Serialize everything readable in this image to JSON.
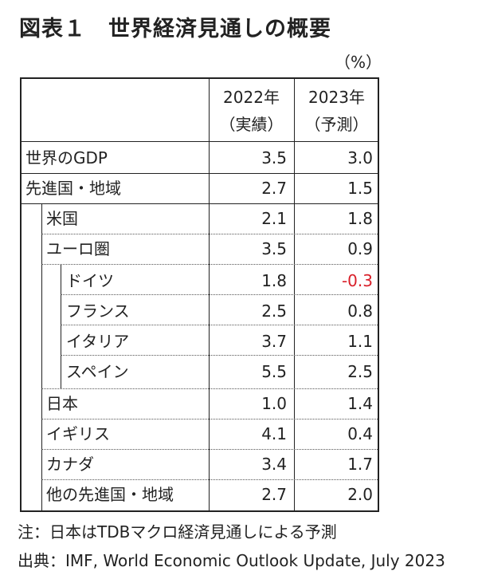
{
  "title": "図表１　世界経済見通しの概要",
  "unit": "（%）",
  "columns": [
    {
      "year": "2022年",
      "kind": "（実績）"
    },
    {
      "year": "2023年",
      "kind": "（予測）"
    }
  ],
  "rows": [
    {
      "label": "世界のGDP",
      "v2022": "3.5",
      "v2023": "3.0"
    },
    {
      "label": "先進国・地域",
      "v2022": "2.7",
      "v2023": "1.5"
    },
    {
      "label": "米国",
      "v2022": "2.1",
      "v2023": "1.8"
    },
    {
      "label": "ユーロ圏",
      "v2022": "3.5",
      "v2023": "0.9"
    },
    {
      "label": "ドイツ",
      "v2022": "1.8",
      "v2023": "-0.3"
    },
    {
      "label": "フランス",
      "v2022": "2.5",
      "v2023": "0.8"
    },
    {
      "label": "イタリア",
      "v2022": "3.7",
      "v2023": "1.1"
    },
    {
      "label": "スペイン",
      "v2022": "5.5",
      "v2023": "2.5"
    },
    {
      "label": "日本",
      "v2022": "1.0",
      "v2023": "1.4"
    },
    {
      "label": "イギリス",
      "v2022": "4.1",
      "v2023": "0.4"
    },
    {
      "label": "カナダ",
      "v2022": "3.4",
      "v2023": "1.7"
    },
    {
      "label": "他の先進国・地域",
      "v2022": "2.7",
      "v2023": "2.0"
    }
  ],
  "negative_color": "#d9202a",
  "note": "注：日本はTDBマクロ経済見通しによる予測",
  "source": "出典：IMF, World Economic Outlook Update, July 2023"
}
